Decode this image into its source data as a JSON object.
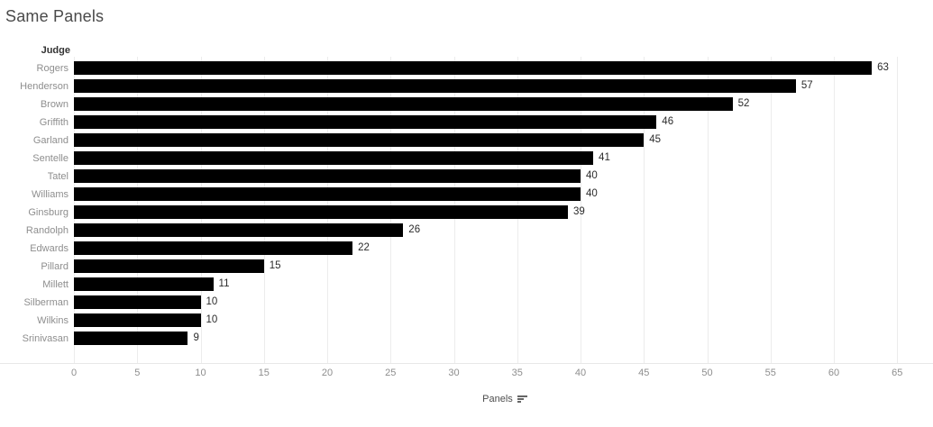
{
  "title": "Same Panels",
  "chart_data": {
    "type": "bar",
    "orientation": "horizontal",
    "title": "Same Panels",
    "column_header": "Judge",
    "categories": [
      "Rogers",
      "Henderson",
      "Brown",
      "Griffith",
      "Garland",
      "Sentelle",
      "Tatel",
      "Williams",
      "Ginsburg",
      "Randolph",
      "Edwards",
      "Pillard",
      "Millett",
      "Silberman",
      "Wilkins",
      "Srinivasan"
    ],
    "values": [
      63,
      57,
      52,
      46,
      45,
      41,
      40,
      40,
      39,
      26,
      22,
      15,
      11,
      10,
      10,
      9
    ],
    "xlabel": "Panels",
    "x_ticks": [
      0,
      5,
      10,
      15,
      20,
      25,
      30,
      35,
      40,
      45,
      50,
      55,
      60,
      65
    ],
    "xlim": [
      0,
      65
    ],
    "sort_order": "descending",
    "grid": "vertical",
    "legend": "none",
    "colors": {
      "bar": "#000000",
      "gridline": "#ececec",
      "title_text": "#4a4a4a",
      "header_text": "#333333",
      "category_text": "#8e8e8e",
      "value_text": "#2b2b2b",
      "tick_text": "#8e8e8e",
      "axis_label_text": "#4e4e4e"
    }
  },
  "icons": {
    "sort_descending": "sort-descending-icon"
  }
}
